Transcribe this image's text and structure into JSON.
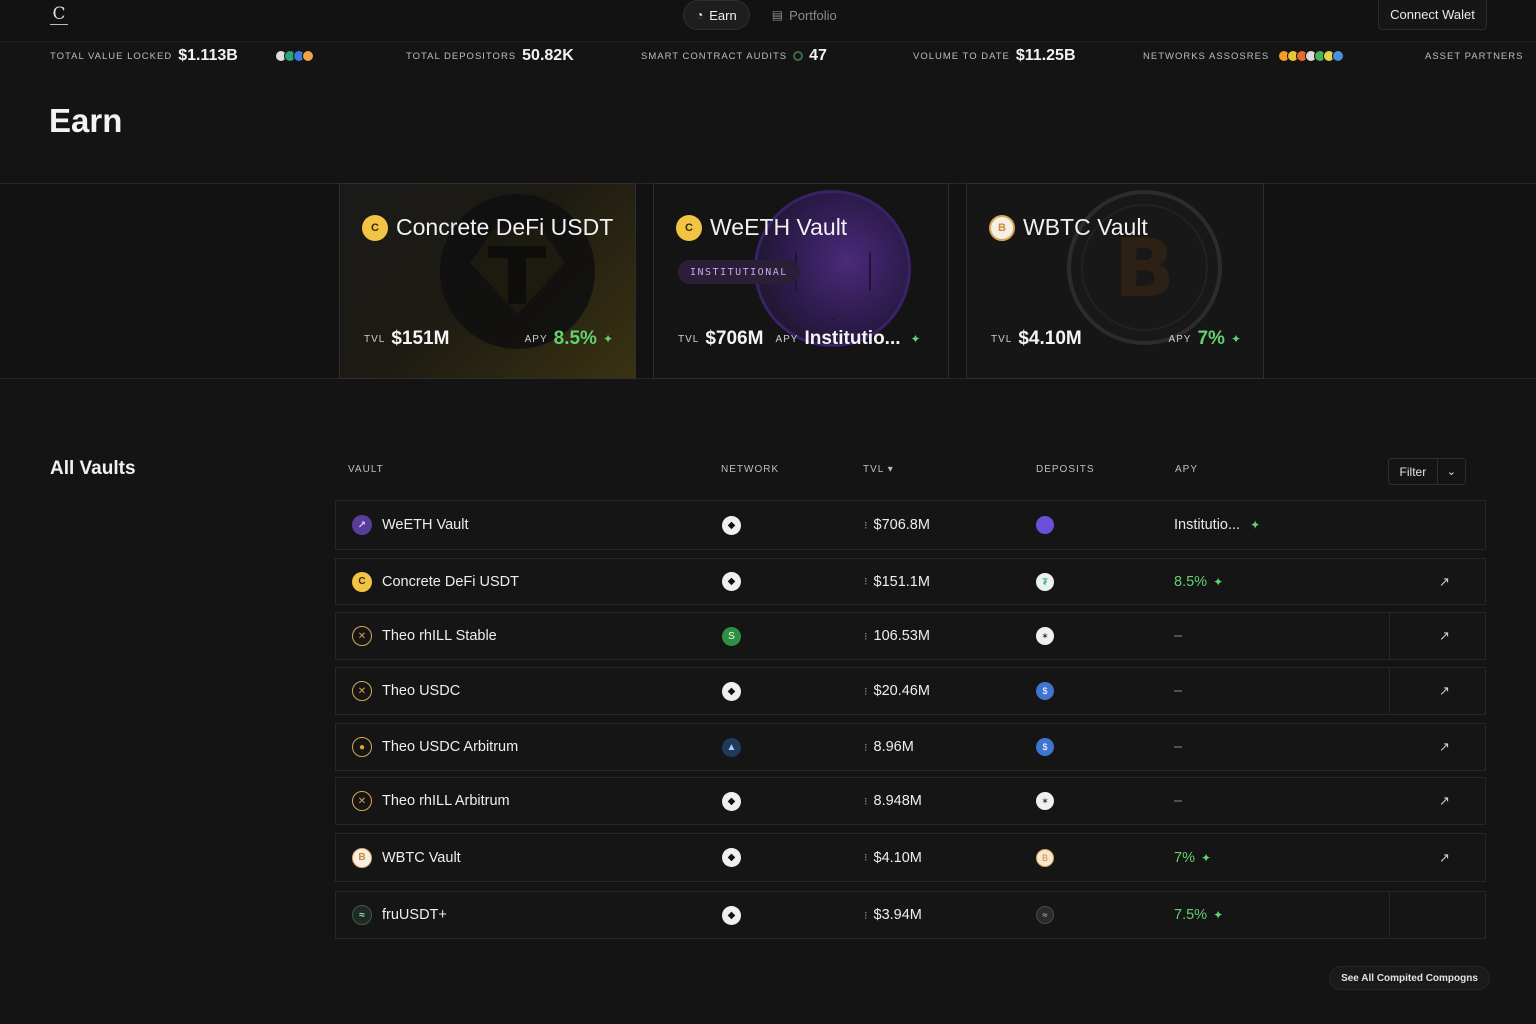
{
  "nav": {
    "logo": "C",
    "tabs": [
      {
        "label": "Earn",
        "icon": "earn-icon",
        "active": true
      },
      {
        "label": "Portfolio",
        "icon": "portfolio-icon",
        "active": false
      }
    ],
    "connect_label": "Connect Walet"
  },
  "stats": [
    {
      "label": "Total Value Locked",
      "value": "$1.113B"
    },
    {
      "label": "Total Depositors",
      "value": "50.82K"
    },
    {
      "label": "Smart Contract Audits",
      "value": "47"
    },
    {
      "label": "Volume to Date",
      "value": "$11.25B"
    },
    {
      "label": "Networks Assosres",
      "value": ""
    },
    {
      "label": "Asset Partners",
      "value": ""
    }
  ],
  "page_title": "Earn",
  "featured": [
    {
      "name": "Concrete DeFi USDT",
      "icon": "concrete-coin-icon",
      "tvl_label": "TVL",
      "tvl": "$151M",
      "apy_label": "APY",
      "apy": "8.5%",
      "badge": ""
    },
    {
      "name": "WeETH Vault",
      "icon": "concrete-coin-icon",
      "tvl_label": "TVL",
      "tvl": "$706M",
      "apy_label": "APY",
      "apy": "Institutio...",
      "badge": "INSTITUTIONAL"
    },
    {
      "name": "WBTC Vault",
      "icon": "bitcoin-icon",
      "tvl_label": "TVL",
      "tvl": "$4.10M",
      "apy_label": "APY",
      "apy": "7%",
      "badge": ""
    }
  ],
  "vaults": {
    "title": "All Vaults",
    "columns": {
      "vault": "Vault",
      "network": "Network",
      "tvl": "TVL ▾",
      "deposits": "Deposits",
      "apy": "APY"
    },
    "filter_label": "Filter",
    "rows": [
      {
        "name": "WeETH Vault",
        "icon": "weeth-icon",
        "network": "ethereum-icon",
        "tvl": "$706.8M",
        "deposit": "weeth-deposit-icon",
        "apy": "Institutio...",
        "apy_green": false,
        "has_link": false
      },
      {
        "name": "Concrete DeFi USDT",
        "icon": "concrete-coin-icon",
        "network": "ethereum-icon",
        "tvl": "$151.1M",
        "deposit": "usdt-icon",
        "apy": "8.5%",
        "apy_green": true,
        "has_link": true
      },
      {
        "name": "Theo rhILL Stable",
        "icon": "theo-icon",
        "network": "sonic-icon",
        "tvl": "106.53M",
        "deposit": "rhill-icon",
        "apy": "–",
        "apy_green": false,
        "has_link": true
      },
      {
        "name": "Theo USDC",
        "icon": "theo-icon",
        "network": "ethereum-icon",
        "tvl": "$20.46M",
        "deposit": "usdc-icon",
        "apy": "–",
        "apy_green": false,
        "has_link": true
      },
      {
        "name": "Theo USDC Arbitrum",
        "icon": "theo-arb-icon",
        "network": "arbitrum-icon",
        "tvl": "8.96M",
        "deposit": "usdc-icon",
        "apy": "–",
        "apy_green": false,
        "has_link": true
      },
      {
        "name": "Theo rhILL Arbitrum",
        "icon": "theo-icon",
        "network": "ethereum-icon",
        "tvl": "8.948M",
        "deposit": "rhill-icon",
        "apy": "–",
        "apy_green": false,
        "has_link": true
      },
      {
        "name": "WBTC Vault",
        "icon": "bitcoin-icon",
        "network": "ethereum-icon",
        "tvl": "$4.10M",
        "deposit": "bitcoin-icon",
        "apy": "7%",
        "apy_green": true,
        "has_link": true
      },
      {
        "name": "fruUSDT+",
        "icon": "fruusdt-icon",
        "network": "ethereum-icon",
        "tvl": "$3.94M",
        "deposit": "fruusdt-icon",
        "apy": "7.5%",
        "apy_green": true,
        "has_link": false
      }
    ],
    "see_all_label": "See All Compited Compogns"
  },
  "colors": {
    "accent_green": "#63d26e",
    "gold": "#f2c443",
    "purple": "#7a4fd0",
    "background": "#141414"
  }
}
